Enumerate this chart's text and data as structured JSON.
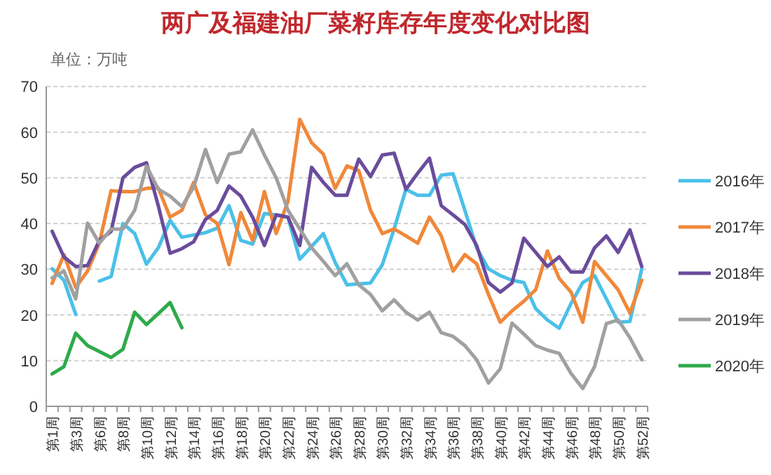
{
  "chart_data": {
    "type": "line",
    "title": "两广及福建油厂菜籽库存年度变化对比图",
    "ylabel": "单位：万吨",
    "categories": [
      "第1周",
      null,
      "第3周",
      null,
      "第6周",
      null,
      "第8周",
      null,
      "第10周",
      null,
      "第12周",
      null,
      "第14周",
      null,
      "第16周",
      null,
      "第18周",
      null,
      "第20周",
      null,
      "第22周",
      null,
      "第24周",
      null,
      "第26周",
      null,
      "第28周",
      null,
      "第30周",
      null,
      "第32周",
      null,
      "第34周",
      null,
      "第36周",
      null,
      "第38周",
      null,
      "第40周",
      null,
      "第42周",
      null,
      "第44周",
      null,
      "第46周",
      null,
      "第48周",
      null,
      "第50周",
      null,
      "第52周"
    ],
    "ylim": [
      0,
      70
    ],
    "yticks": [
      0,
      10,
      20,
      30,
      40,
      50,
      60,
      70
    ],
    "grid": "y",
    "legend": "right",
    "marker": "none",
    "line_style": "solid",
    "series": [
      {
        "name": "2016年",
        "color": "#4bc0e8",
        "values": [
          30.1,
          27.6,
          20.1,
          null,
          27.4,
          28.4,
          40,
          37.8,
          31.1,
          34.7,
          40.7,
          37,
          37.5,
          38,
          39,
          43.9,
          36.3,
          35.5,
          42.2,
          41.9,
          41.4,
          32.2,
          35,
          37.8,
          31.5,
          26.6,
          26.8,
          27,
          31,
          38.8,
          47.5,
          46.2,
          46.2,
          50.6,
          50.9,
          42.9,
          34.7,
          30.1,
          28.6,
          27.6,
          27.1,
          21.4,
          18.9,
          17.1,
          22.5,
          27.1,
          28.6,
          23.5,
          18.4,
          18.6,
          30.1
        ]
      },
      {
        "name": "2017年",
        "color": "#f0883a",
        "values": [
          26.9,
          33.2,
          26,
          29.6,
          35.7,
          47.2,
          47,
          47,
          47.7,
          47.8,
          41.4,
          42.9,
          49,
          41.9,
          40,
          31,
          42.4,
          36.3,
          47,
          37.8,
          44.9,
          62.8,
          57.7,
          55.2,
          47.7,
          52.6,
          51.6,
          42.9,
          37.8,
          38.8,
          37.3,
          35.7,
          41.4,
          37.3,
          29.6,
          33.2,
          31.2,
          24.5,
          18.4,
          20.9,
          23,
          25.5,
          34,
          28,
          25,
          18.4,
          31.7,
          28.6,
          25.5,
          20.4,
          27.6
        ]
      },
      {
        "name": "2018年",
        "color": "#6a4c9c",
        "values": [
          38.3,
          32.7,
          30.6,
          30.8,
          36.3,
          38.3,
          50,
          52.3,
          53.3,
          43.9,
          33.5,
          34.5,
          36,
          40.9,
          42.9,
          48.2,
          46,
          41.4,
          35.2,
          41.9,
          41.4,
          35.2,
          52.3,
          49,
          46.2,
          46.2,
          54.1,
          50.3,
          55,
          55.4,
          47.5,
          51,
          54.3,
          43.9,
          41.9,
          39.8,
          35.2,
          27.1,
          25,
          27,
          36.8,
          33.7,
          30.6,
          32.7,
          29.4,
          29.4,
          34.7,
          37.3,
          33.7,
          38.6,
          30.6
        ]
      },
      {
        "name": "2019年",
        "color": "#a0a0a0",
        "values": [
          28.1,
          29.6,
          23.5,
          40.1,
          35.7,
          38.8,
          38.8,
          42.9,
          52.6,
          47.5,
          46,
          43.7,
          48,
          56.2,
          49,
          55.2,
          55.7,
          60.5,
          55,
          50,
          42.9,
          38.8,
          34.7,
          31.7,
          28.6,
          31.2,
          26.6,
          24.5,
          20.9,
          23.3,
          20.6,
          18.9,
          20.6,
          16.1,
          15.3,
          13.3,
          10.2,
          5.1,
          8.2,
          18.2,
          15.8,
          13.3,
          12.3,
          11.6,
          7.2,
          3.9,
          8.7,
          18.1,
          18.9,
          15,
          10.2
        ]
      },
      {
        "name": "2020年",
        "color": "#2eaa4a",
        "values": [
          7.1,
          8.7,
          16,
          13.3,
          12,
          10.7,
          12.5,
          20.6,
          17.9,
          20.3,
          22.7,
          17.2,
          null,
          null,
          null,
          null,
          null,
          null,
          null,
          null,
          null,
          null,
          null,
          null,
          null,
          null,
          null,
          null,
          null,
          null,
          null,
          null,
          null,
          null,
          null,
          null,
          null,
          null,
          null,
          null,
          null,
          null,
          null,
          null,
          null,
          null,
          null,
          null,
          null,
          null,
          null
        ]
      }
    ]
  }
}
